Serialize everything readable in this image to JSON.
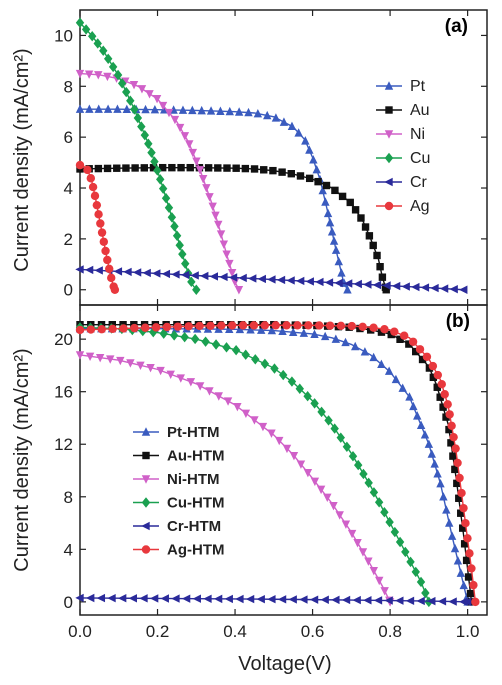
{
  "chart_data": [
    {
      "panel": "(a)",
      "type": "line",
      "xlabel": "",
      "ylabel": "Current density (mA/cm²)",
      "xlim": [
        0,
        1.05
      ],
      "ylim": [
        -0.6,
        11
      ],
      "yticks": [
        0,
        2,
        4,
        6,
        8,
        10
      ],
      "legend_position": "right",
      "series": [
        {
          "name": "Pt",
          "color": "#3a5bbf",
          "marker": "triangle-up",
          "x": [
            0,
            0.1,
            0.2,
            0.3,
            0.4,
            0.45,
            0.5,
            0.55,
            0.58,
            0.6,
            0.62,
            0.64,
            0.66,
            0.68,
            0.69
          ],
          "y": [
            7.1,
            7.1,
            7.08,
            7.05,
            7.0,
            6.95,
            6.8,
            6.4,
            5.9,
            5.2,
            4.3,
            3.0,
            1.6,
            0.3,
            0
          ]
        },
        {
          "name": "Au",
          "color": "#111111",
          "marker": "square",
          "x": [
            0,
            0.1,
            0.2,
            0.3,
            0.4,
            0.45,
            0.5,
            0.55,
            0.6,
            0.65,
            0.7,
            0.73,
            0.75,
            0.77,
            0.78,
            0.79
          ],
          "y": [
            4.75,
            4.78,
            4.8,
            4.8,
            4.78,
            4.75,
            4.68,
            4.55,
            4.35,
            4.0,
            3.4,
            2.7,
            2.0,
            1.2,
            0.5,
            0
          ]
        },
        {
          "name": "Ni",
          "color": "#d060c8",
          "marker": "triangle-down",
          "x": [
            0,
            0.05,
            0.1,
            0.15,
            0.2,
            0.25,
            0.28,
            0.31,
            0.34,
            0.36,
            0.38,
            0.4,
            0.41
          ],
          "y": [
            8.5,
            8.45,
            8.3,
            8.0,
            7.5,
            6.6,
            5.8,
            4.7,
            3.4,
            2.4,
            1.3,
            0.3,
            0
          ]
        },
        {
          "name": "Cu",
          "color": "#1aa050",
          "marker": "diamond",
          "x": [
            0,
            0.03,
            0.06,
            0.1,
            0.14,
            0.18,
            0.21,
            0.24,
            0.26,
            0.28,
            0.29,
            0.3
          ],
          "y": [
            10.5,
            10.0,
            9.4,
            8.4,
            7.1,
            5.6,
            4.2,
            2.7,
            1.6,
            0.6,
            0.2,
            0
          ]
        },
        {
          "name": "Cr",
          "color": "#2a2a9a",
          "marker": "triangle-left",
          "x": [
            0,
            0.1,
            0.2,
            0.3,
            0.4,
            0.5,
            0.6,
            0.7,
            0.8,
            0.9,
            0.99
          ],
          "y": [
            0.8,
            0.72,
            0.64,
            0.56,
            0.48,
            0.4,
            0.32,
            0.24,
            0.16,
            0.08,
            0
          ]
        },
        {
          "name": "Ag",
          "color": "#e8383d",
          "marker": "circle",
          "x": [
            0,
            0.01,
            0.02,
            0.03,
            0.04,
            0.05,
            0.06,
            0.07,
            0.08,
            0.085,
            0.09
          ],
          "y": [
            4.9,
            4.85,
            4.7,
            4.3,
            3.6,
            2.8,
            2.0,
            1.2,
            0.5,
            0.2,
            0
          ]
        }
      ]
    },
    {
      "panel": "(b)",
      "type": "line",
      "xlabel": "Voltage(V)",
      "ylabel": "Current density (mA/cm²)",
      "xlim": [
        0,
        1.05
      ],
      "ylim": [
        -1,
        22.6
      ],
      "xticks": [
        "0.0",
        "0.2",
        "0.4",
        "0.6",
        "0.8",
        "1.0"
      ],
      "yticks": [
        0,
        4,
        8,
        12,
        16,
        20
      ],
      "legend_position": "lower-left",
      "series": [
        {
          "name": "Pt-HTM",
          "color": "#3a5bbf",
          "marker": "triangle-up",
          "x": [
            0,
            0.1,
            0.2,
            0.3,
            0.4,
            0.5,
            0.6,
            0.65,
            0.7,
            0.75,
            0.8,
            0.85,
            0.9,
            0.93,
            0.96,
            0.98,
            1.0
          ],
          "y": [
            20.8,
            20.8,
            20.8,
            20.78,
            20.75,
            20.65,
            20.4,
            20.1,
            19.6,
            18.8,
            17.5,
            15.6,
            12.0,
            9.0,
            5.0,
            2.5,
            0
          ]
        },
        {
          "name": "Au-HTM",
          "color": "#111111",
          "marker": "square",
          "x": [
            0,
            0.1,
            0.2,
            0.3,
            0.4,
            0.5,
            0.6,
            0.7,
            0.75,
            0.8,
            0.85,
            0.9,
            0.92,
            0.95,
            0.97,
            0.99,
            1.01
          ],
          "y": [
            21.1,
            21.1,
            21.1,
            21.1,
            21.1,
            21.1,
            21.05,
            20.9,
            20.7,
            20.4,
            19.6,
            17.9,
            16.5,
            13.5,
            9.5,
            5.0,
            0
          ]
        },
        {
          "name": "Ni-HTM",
          "color": "#d060c8",
          "marker": "triangle-down",
          "x": [
            0,
            0.1,
            0.2,
            0.3,
            0.4,
            0.5,
            0.55,
            0.6,
            0.65,
            0.7,
            0.75,
            0.78,
            0.8
          ],
          "y": [
            18.8,
            18.4,
            17.7,
            16.6,
            15.0,
            12.7,
            11.2,
            9.4,
            7.5,
            5.3,
            2.8,
            1.2,
            0
          ]
        },
        {
          "name": "Cu-HTM",
          "color": "#1aa050",
          "marker": "diamond",
          "x": [
            0,
            0.1,
            0.2,
            0.3,
            0.4,
            0.5,
            0.55,
            0.6,
            0.65,
            0.7,
            0.75,
            0.8,
            0.85,
            0.88,
            0.9
          ],
          "y": [
            20.9,
            20.8,
            20.5,
            20.0,
            19.2,
            17.8,
            16.7,
            15.3,
            13.5,
            11.3,
            8.8,
            6.0,
            3.2,
            1.5,
            0
          ]
        },
        {
          "name": "Cr-HTM",
          "color": "#2a2a9a",
          "marker": "triangle-left",
          "x": [
            0,
            0.1,
            0.2,
            0.3,
            0.4,
            0.5,
            0.6,
            0.7,
            0.8,
            0.9,
            1.0
          ],
          "y": [
            0.3,
            0.28,
            0.26,
            0.24,
            0.22,
            0.2,
            0.17,
            0.14,
            0.1,
            0.06,
            0
          ]
        },
        {
          "name": "Ag-HTM",
          "color": "#e8383d",
          "marker": "circle",
          "x": [
            0,
            0.1,
            0.2,
            0.3,
            0.4,
            0.5,
            0.6,
            0.7,
            0.75,
            0.8,
            0.85,
            0.9,
            0.93,
            0.95,
            0.97,
            0.99,
            1.01,
            1.02
          ],
          "y": [
            20.7,
            20.8,
            20.9,
            21.0,
            21.05,
            21.05,
            21.05,
            21.0,
            20.9,
            20.7,
            20.1,
            18.5,
            16.9,
            14.9,
            11.5,
            7.0,
            2.5,
            0
          ]
        }
      ]
    }
  ]
}
